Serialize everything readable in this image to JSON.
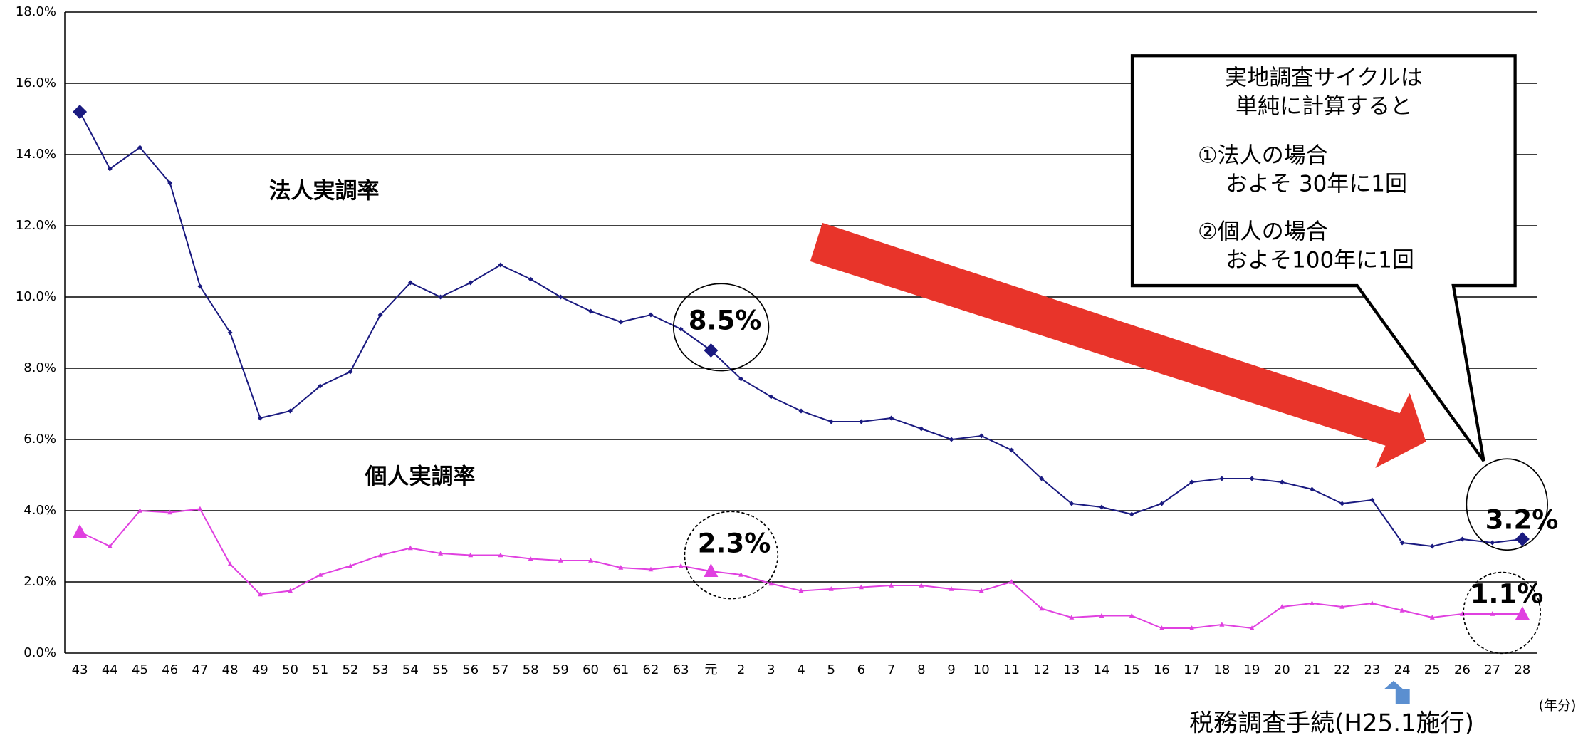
{
  "chart_data": {
    "type": "line",
    "categories": [
      "43",
      "44",
      "45",
      "46",
      "47",
      "48",
      "49",
      "50",
      "51",
      "52",
      "53",
      "54",
      "55",
      "56",
      "57",
      "58",
      "59",
      "60",
      "61",
      "62",
      "63",
      "元",
      "2",
      "3",
      "4",
      "5",
      "6",
      "7",
      "8",
      "9",
      "10",
      "11",
      "12",
      "13",
      "14",
      "15",
      "16",
      "17",
      "18",
      "19",
      "20",
      "21",
      "22",
      "23",
      "24",
      "25",
      "26",
      "27",
      "28"
    ],
    "series": [
      {
        "name": "法人実調率",
        "color": "#1a1a80",
        "marker": "diamond",
        "values": [
          15.2,
          13.6,
          14.2,
          13.2,
          10.3,
          9.0,
          6.6,
          6.8,
          7.5,
          7.9,
          9.5,
          10.4,
          10.0,
          10.4,
          10.9,
          10.5,
          10.0,
          9.6,
          9.3,
          9.5,
          9.1,
          8.5,
          7.7,
          7.2,
          6.8,
          6.5,
          6.5,
          6.6,
          6.3,
          6.0,
          6.1,
          5.7,
          4.9,
          4.2,
          4.1,
          3.9,
          4.2,
          4.8,
          4.9,
          4.9,
          4.8,
          4.6,
          4.2,
          4.3,
          3.1,
          3.0,
          3.2,
          3.1,
          3.2
        ]
      },
      {
        "name": "個人実調率",
        "color": "#e040e0",
        "marker": "triangle",
        "values": [
          3.4,
          3.0,
          4.0,
          3.95,
          4.05,
          2.5,
          1.65,
          1.75,
          2.2,
          2.45,
          2.75,
          2.95,
          2.8,
          2.75,
          2.75,
          2.65,
          2.6,
          2.6,
          2.4,
          2.35,
          2.45,
          2.3,
          2.2,
          1.95,
          1.75,
          1.8,
          1.85,
          1.9,
          1.9,
          1.8,
          1.75,
          2.0,
          1.25,
          1.0,
          1.05,
          1.05,
          0.7,
          0.7,
          0.8,
          0.7,
          1.3,
          1.4,
          1.3,
          1.4,
          1.2,
          1.0,
          1.1,
          1.1,
          1.1
        ]
      }
    ],
    "ylim": [
      0,
      18
    ],
    "yticks": [
      {
        "value": 0,
        "label": "0.0%"
      },
      {
        "value": 2,
        "label": "2.0%"
      },
      {
        "value": 4,
        "label": "4.0%"
      },
      {
        "value": 6,
        "label": "6.0%"
      },
      {
        "value": 8,
        "label": "8.0%"
      },
      {
        "value": 10,
        "label": "10.0%"
      },
      {
        "value": 12,
        "label": "12.0%"
      },
      {
        "value": 14,
        "label": "14.0%"
      },
      {
        "value": 16,
        "label": "16.0%"
      },
      {
        "value": 18,
        "label": "18.0%"
      }
    ],
    "grid": true,
    "x_unit": "(年分)",
    "annotations": {
      "callouts": [
        "8.5%",
        "2.3%",
        "3.2%",
        "1.1%"
      ],
      "box_lines": [
        "実地調査サイクルは",
        "単純に計算すると",
        "①法人の場合",
        "およそ 30年に1回",
        "②個人の場合",
        "およそ100年に1回"
      ],
      "footnote": "税務調査手続(H25.1施行)"
    }
  }
}
